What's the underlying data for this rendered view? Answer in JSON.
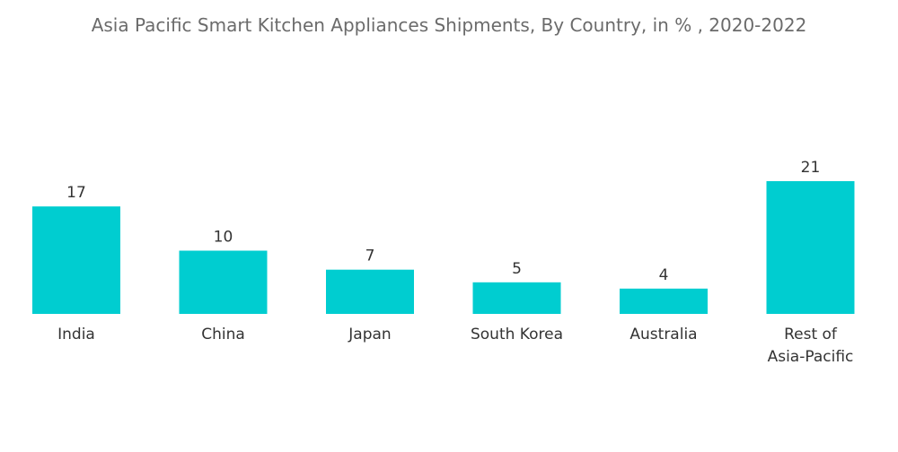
{
  "chart_data": {
    "type": "bar",
    "title": "Asia Pacific Smart Kitchen Appliances Shipments, By Country,  in % , 2020-2022",
    "categories": [
      [
        "India"
      ],
      [
        "China"
      ],
      [
        "Japan"
      ],
      [
        "South Korea"
      ],
      [
        "Australia"
      ],
      [
        "Rest of",
        "Asia-Pacific"
      ]
    ],
    "values": [
      17,
      10,
      7,
      5,
      4,
      21
    ],
    "ylim": [
      0,
      21
    ],
    "grid": false,
    "legend": "none",
    "bar_color": "#00cdd0"
  }
}
